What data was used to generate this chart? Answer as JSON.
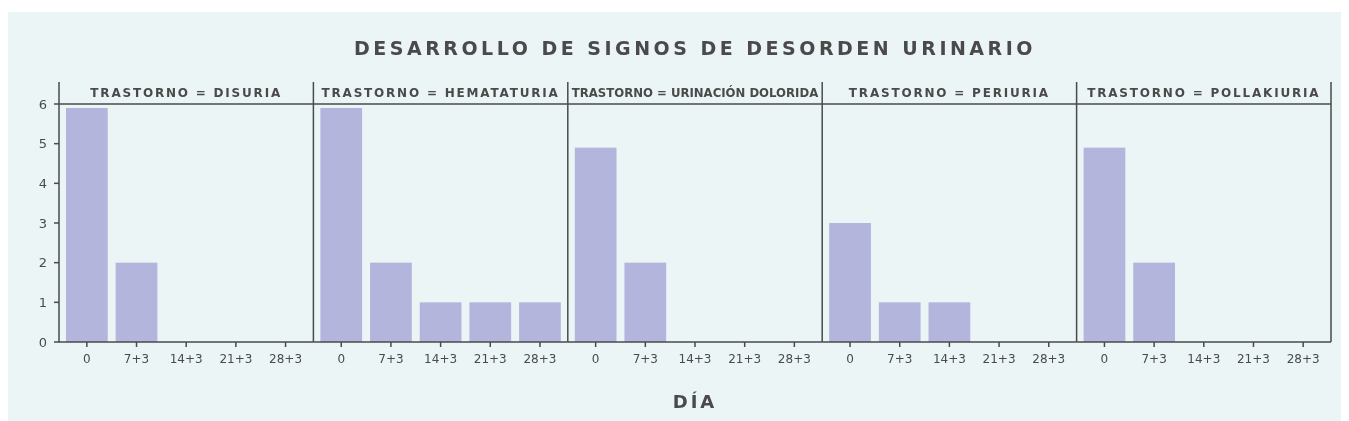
{
  "chart_data": [
    {
      "type": "bar",
      "title": "TRASTORNO = DISURIA",
      "annotations": [
        "DESARROLLO DE SIGNOS DE DESORDEN URINARIO"
      ],
      "categories": [
        "0",
        "7+3",
        "14+3",
        "21+3",
        "28+3"
      ],
      "values": [
        5.9,
        2,
        0,
        0,
        0
      ],
      "color": "#b3b5dc",
      "ylim": [
        0,
        6
      ],
      "yticks": [
        0,
        1,
        2,
        3,
        4,
        5,
        6
      ]
    },
    {
      "type": "bar",
      "title": "TRASTORNO = HEMATATURIA",
      "categories": [
        "0",
        "7+3",
        "14+3",
        "21+3",
        "28+3"
      ],
      "values": [
        5.9,
        2,
        1,
        1,
        1
      ],
      "color": "#b3b5dc",
      "ylim": [
        0,
        6
      ],
      "yticks": [
        0,
        1,
        2,
        3,
        4,
        5,
        6
      ],
      "tick_labels": "x"
    },
    {
      "type": "bar",
      "title": "TRASTORNO = URINACIÓN DOLORIDA",
      "xlabel": "DÍA",
      "categories": [
        "0",
        "7+3",
        "14+3",
        "21+3",
        "28+3"
      ],
      "values": [
        4.9,
        2,
        0,
        0,
        0
      ],
      "color": "#b3b5dc",
      "ylim": [
        0,
        6
      ],
      "yticks": [
        0,
        1,
        2,
        3,
        4,
        5,
        6
      ],
      "tick_labels": "x"
    },
    {
      "type": "bar",
      "title": "TRASTORNO = PERIURIA",
      "categories": [
        "0",
        "7+3",
        "14+3",
        "21+3",
        "28+3"
      ],
      "values": [
        3,
        1,
        1,
        0,
        0
      ],
      "color": "#b3b5dc",
      "ylim": [
        0,
        6
      ],
      "yticks": [
        0,
        1,
        2,
        3,
        4,
        5,
        6
      ],
      "tick_labels": "x"
    },
    {
      "type": "bar",
      "title": "TRASTORNO = POLLAKIURIA",
      "categories": [
        "0",
        "7+3",
        "14+3",
        "21+3",
        "28+3"
      ],
      "values": [
        4.9,
        2,
        0,
        0,
        0
      ],
      "color": "#b3b5dc",
      "ylim": [
        0,
        6
      ],
      "yticks": [
        0,
        1,
        2,
        3,
        4,
        5,
        6
      ],
      "tick_labels": "x"
    }
  ]
}
